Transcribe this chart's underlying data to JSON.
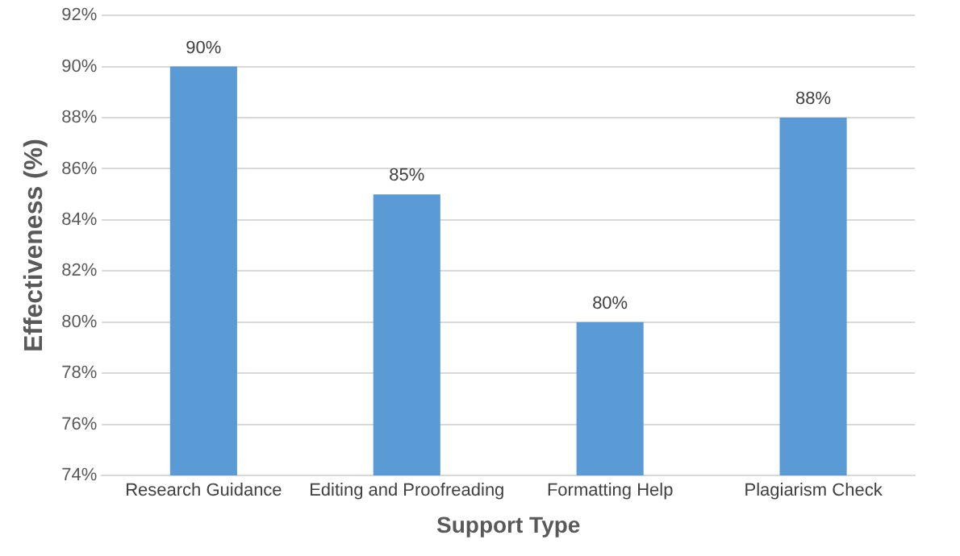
{
  "chart_data": {
    "type": "bar",
    "xlabel": "Support Type",
    "ylabel": "Effectiveness (%)",
    "categories": [
      "Research Guidance",
      "Editing and Proofreading",
      "Formatting Help",
      "Plagiarism Check"
    ],
    "values": [
      90,
      85,
      80,
      88
    ],
    "color": "#5b9bd5",
    "value_labels": [
      "90%",
      "85%",
      "80%",
      "88%"
    ],
    "ylim": [
      74,
      92
    ],
    "yticks": [
      {
        "value": 74,
        "label": "74%"
      },
      {
        "value": 76,
        "label": "76%"
      },
      {
        "value": 78,
        "label": "78%"
      },
      {
        "value": 80,
        "label": "80%"
      },
      {
        "value": 82,
        "label": "82%"
      },
      {
        "value": 84,
        "label": "84%"
      },
      {
        "value": 86,
        "label": "86%"
      },
      {
        "value": 88,
        "label": "88%"
      },
      {
        "value": 90,
        "label": "90%"
      },
      {
        "value": 92,
        "label": "92%"
      }
    ],
    "grid": "y",
    "legend": false
  }
}
